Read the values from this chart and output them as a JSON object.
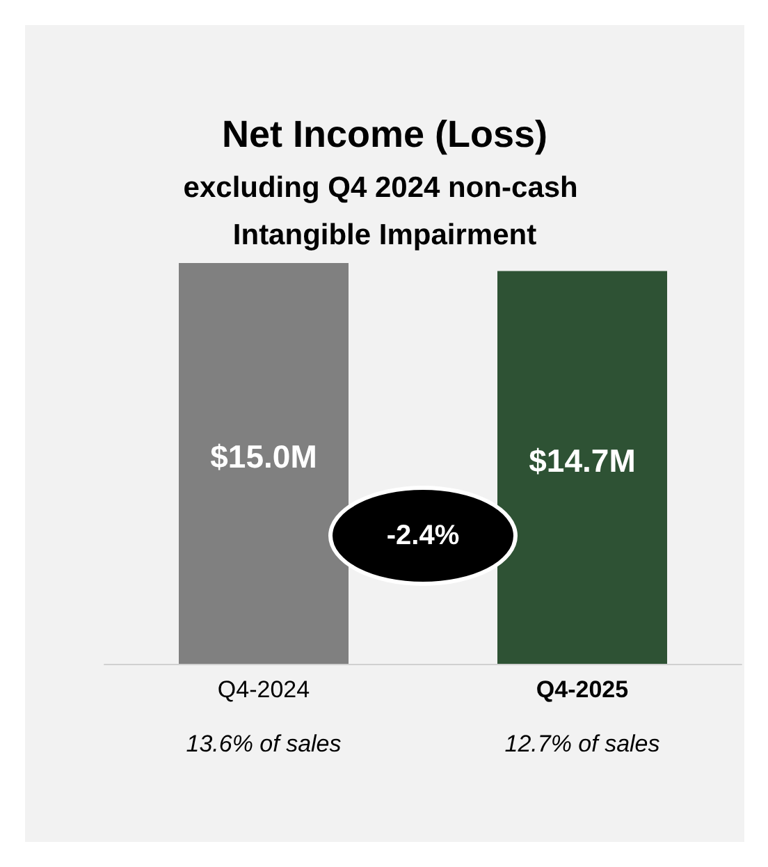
{
  "chart_data": {
    "type": "bar",
    "title": "Net Income (Loss)",
    "subtitle": "excluding Q4 2024 non-cash Intangible Impairment",
    "categories": [
      "Q4-2024",
      "Q4-2025"
    ],
    "values": [
      15.0,
      14.7
    ],
    "colors": [
      "#808080",
      "#2e5234"
    ],
    "value_labels": [
      "$15.0M",
      "$14.7M"
    ],
    "annotations": [
      "-2.4%",
      "13.6% of sales",
      "12.7% of sales"
    ],
    "grid": false
  }
}
